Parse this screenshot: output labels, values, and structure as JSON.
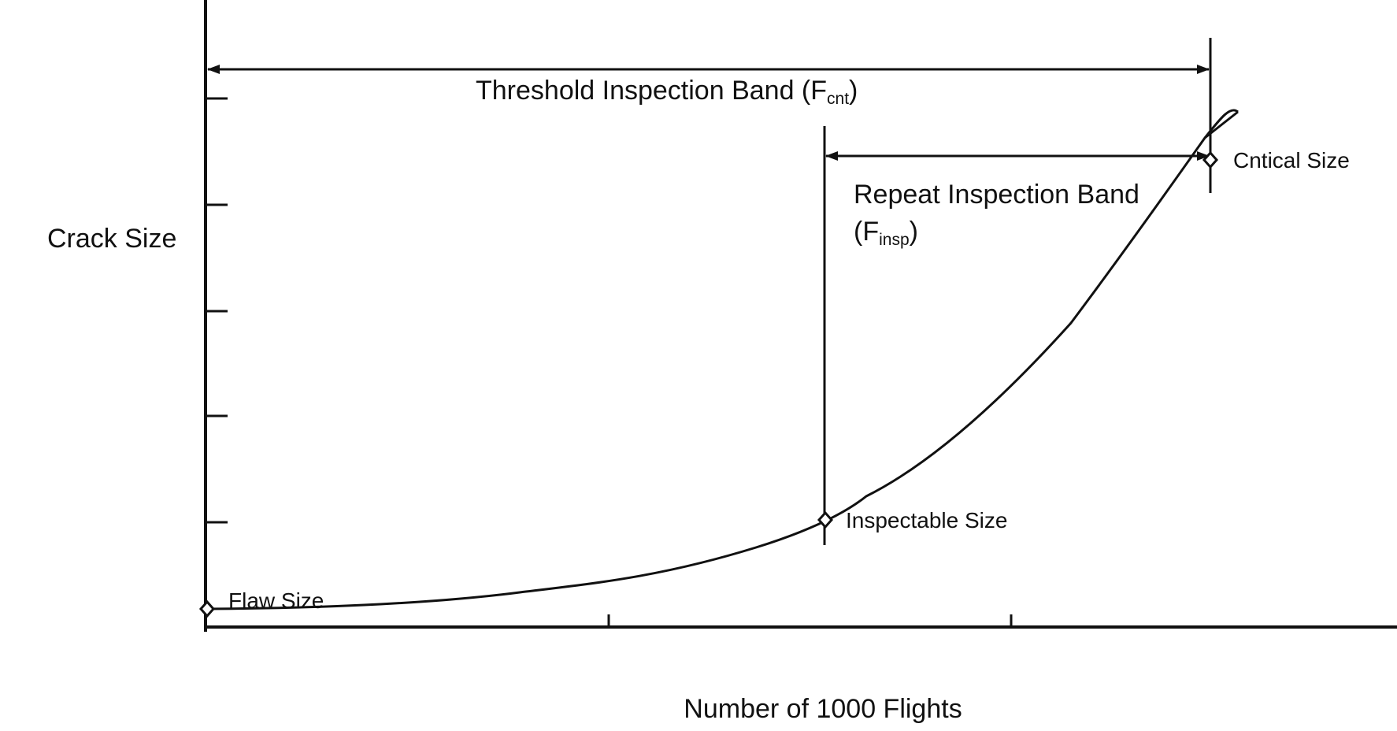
{
  "diagram": {
    "y_axis_label": "Crack Size",
    "x_axis_label": "Number of 1000 Flights",
    "threshold_band": {
      "prefix": "Threshold Inspection Band (F",
      "subscript": "cnt",
      "suffix": ")"
    },
    "repeat_band": {
      "line1": "Repeat Inspection Band",
      "line2_prefix": "(F",
      "line2_subscript": "insp",
      "line2_suffix": ")"
    },
    "points": {
      "critical": "Cntical Size",
      "inspectable": "Inspectable Size",
      "flaw": "Flaw Size"
    }
  }
}
